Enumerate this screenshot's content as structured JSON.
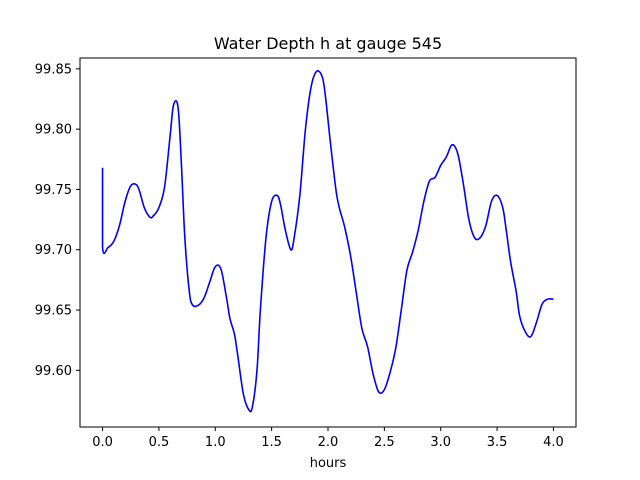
{
  "chart_data": {
    "type": "line",
    "title": "Water Depth h at gauge 545",
    "xlabel": "hours",
    "ylabel": "",
    "xlim": [
      -0.2,
      4.2
    ],
    "ylim": [
      99.553,
      99.859
    ],
    "xticks": [
      0.0,
      0.5,
      1.0,
      1.5,
      2.0,
      2.5,
      3.0,
      3.5,
      4.0
    ],
    "xtick_labels": [
      "0.0",
      "0.5",
      "1.0",
      "1.5",
      "2.0",
      "2.5",
      "3.0",
      "3.5",
      "4.0"
    ],
    "yticks": [
      99.6,
      99.65,
      99.7,
      99.75,
      99.8,
      99.85
    ],
    "ytick_labels": [
      "99.60",
      "99.65",
      "99.70",
      "99.75",
      "99.80",
      "99.85"
    ],
    "grid": false,
    "series": [
      {
        "color": "#0000ff",
        "x": [
          0.0,
          0.0,
          0.05,
          0.1,
          0.15,
          0.2,
          0.25,
          0.3,
          0.33,
          0.37,
          0.42,
          0.45,
          0.5,
          0.55,
          0.6,
          0.63,
          0.67,
          0.7,
          0.73,
          0.77,
          0.8,
          0.85,
          0.9,
          0.95,
          1.0,
          1.05,
          1.1,
          1.13,
          1.17,
          1.2,
          1.25,
          1.3,
          1.33,
          1.37,
          1.4,
          1.45,
          1.5,
          1.55,
          1.58,
          1.62,
          1.67,
          1.7,
          1.75,
          1.8,
          1.85,
          1.9,
          1.95,
          1.98,
          2.02,
          2.07,
          2.1,
          2.15,
          2.2,
          2.25,
          2.3,
          2.35,
          2.4,
          2.45,
          2.5,
          2.55,
          2.6,
          2.65,
          2.7,
          2.75,
          2.8,
          2.85,
          2.9,
          2.95,
          3.0,
          3.05,
          3.1,
          3.15,
          3.2,
          3.25,
          3.3,
          3.35,
          3.4,
          3.45,
          3.5,
          3.55,
          3.58,
          3.62,
          3.67,
          3.7,
          3.75,
          3.8,
          3.85,
          3.9,
          3.95,
          4.0
        ],
        "y": [
          99.768,
          99.702,
          99.702,
          99.707,
          99.72,
          99.74,
          99.753,
          99.754,
          99.748,
          99.735,
          99.727,
          99.728,
          99.735,
          99.752,
          99.795,
          99.82,
          99.818,
          99.77,
          99.71,
          99.665,
          99.654,
          99.654,
          99.66,
          99.673,
          99.686,
          99.684,
          99.66,
          99.643,
          99.63,
          99.612,
          99.58,
          99.567,
          99.57,
          99.6,
          99.65,
          99.71,
          99.74,
          99.745,
          99.737,
          99.717,
          99.7,
          99.71,
          99.745,
          99.8,
          99.835,
          99.848,
          99.843,
          99.825,
          99.79,
          99.75,
          99.735,
          99.718,
          99.695,
          99.665,
          99.635,
          99.62,
          99.597,
          99.582,
          99.584,
          99.598,
          99.618,
          99.65,
          99.683,
          99.698,
          99.716,
          99.74,
          99.757,
          99.76,
          99.77,
          99.777,
          99.787,
          99.78,
          99.755,
          99.725,
          99.71,
          99.71,
          99.72,
          99.74,
          99.745,
          99.735,
          99.717,
          99.69,
          99.665,
          99.645,
          99.632,
          99.628,
          99.64,
          99.655,
          99.659,
          99.659
        ]
      }
    ]
  }
}
